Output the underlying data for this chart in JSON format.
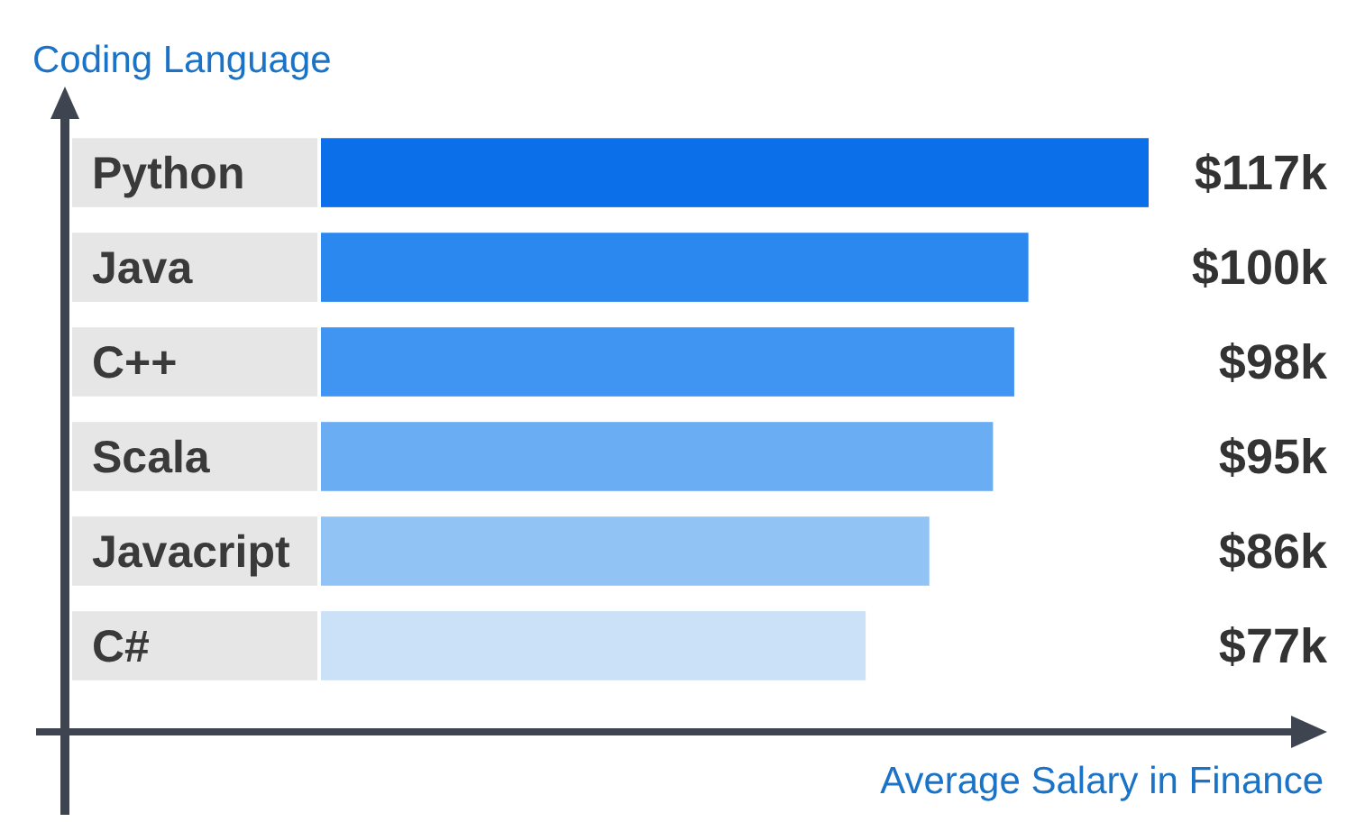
{
  "chart_data": {
    "type": "bar",
    "orientation": "horizontal",
    "ylabel": "Coding Language",
    "xlabel": "Average Salary in Finance",
    "categories": [
      "Python",
      "Java",
      "C++",
      "Scala",
      "Javacript",
      "C#"
    ],
    "values": [
      117,
      100,
      98,
      95,
      86,
      77
    ],
    "colors": [
      "#0b6fe9",
      "#2a88ef",
      "#3f95f1",
      "#6badf3",
      "#92c3f5",
      "#cbe1f8"
    ],
    "value_labels": [
      "$117k",
      "$100k",
      "$98k",
      "$95k",
      "$86k",
      "$77k"
    ],
    "tick_labels": "y"
  }
}
